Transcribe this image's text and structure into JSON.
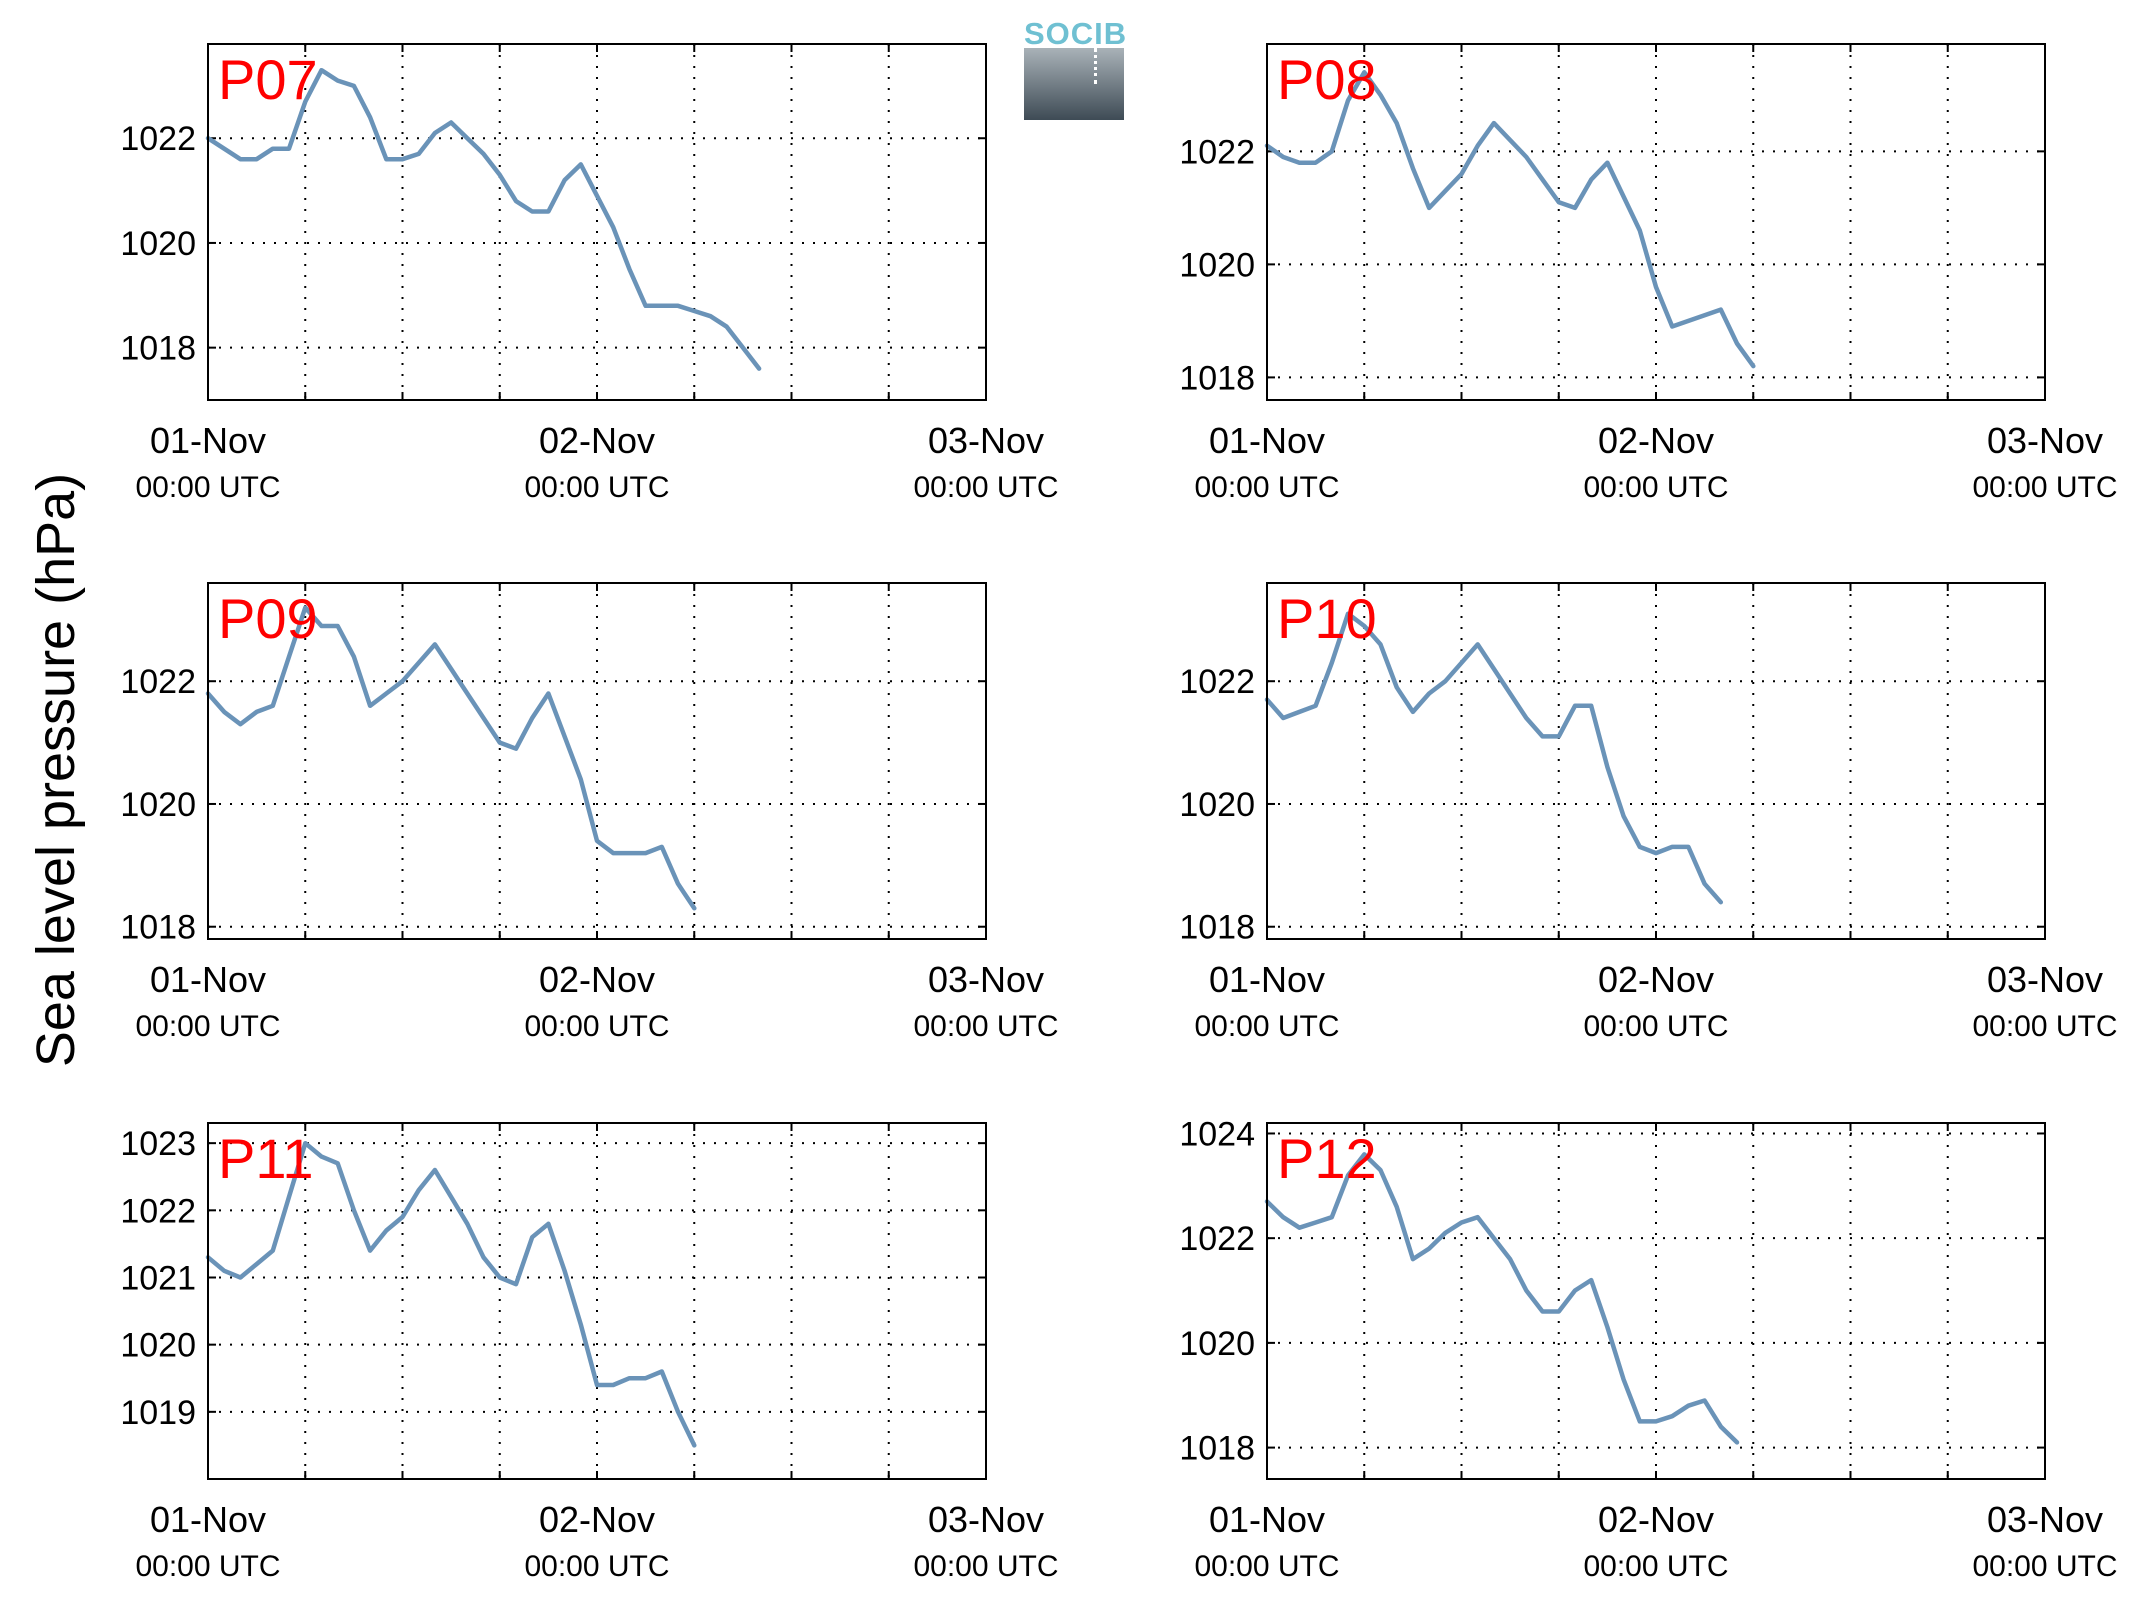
{
  "figure": {
    "ylabel": "Sea level pressure (hPa)",
    "logo_text": "SOCIB",
    "colors": {
      "line": "#6a93b8",
      "panel_label": "#ff0000",
      "axes": "#000000"
    }
  },
  "chart_data": [
    {
      "type": "line",
      "label": "P07",
      "ylim": [
        1017.0,
        1023.8
      ],
      "yticks": [
        1018,
        1020,
        1022
      ],
      "xlim": [
        0,
        48
      ],
      "xticks": [
        0,
        24,
        48
      ],
      "xticklabels": [
        [
          "01-Nov",
          "00:00 UTC"
        ],
        [
          "02-Nov",
          "00:00 UTC"
        ],
        [
          "03-Nov",
          "00:00 UTC"
        ]
      ],
      "x": [
        0,
        1,
        2,
        3,
        4,
        5,
        6,
        7,
        8,
        9,
        10,
        11,
        12,
        13,
        14,
        15,
        16,
        17,
        18,
        19,
        20,
        21,
        22,
        23,
        24,
        25,
        26,
        27,
        28,
        29,
        30,
        31,
        32,
        33,
        34,
        35,
        36,
        37,
        38,
        39,
        40,
        41,
        42,
        43,
        44,
        45,
        46,
        47,
        48
      ],
      "y": [
        1022.0,
        1021.8,
        1021.6,
        1021.6,
        1021.8,
        1021.8,
        1022.7,
        1023.3,
        1023.1,
        1023.0,
        1022.4,
        1021.6,
        1021.6,
        1021.7,
        1022.1,
        1022.3,
        1022.0,
        1021.7,
        1021.3,
        1020.8,
        1020.6,
        1020.6,
        1021.2,
        1021.5,
        1020.9,
        1020.3,
        1019.5,
        1018.8,
        1018.8,
        1018.8,
        1018.7,
        1018.6,
        1018.4,
        1018.0,
        1017.6,
        null,
        null,
        null,
        null,
        null,
        null,
        null,
        null,
        null,
        null,
        null,
        null,
        null,
        null
      ]
    },
    {
      "type": "line",
      "label": "P08",
      "ylim": [
        1017.6,
        1023.9
      ],
      "yticks": [
        1018,
        1020,
        1022
      ],
      "xlim": [
        0,
        48
      ],
      "xticks": [
        0,
        24,
        48
      ],
      "xticklabels": [
        [
          "01-Nov",
          "00:00 UTC"
        ],
        [
          "02-Nov",
          "00:00 UTC"
        ],
        [
          "03-Nov",
          "00:00 UTC"
        ]
      ],
      "x": [
        0,
        1,
        2,
        3,
        4,
        5,
        6,
        7,
        8,
        9,
        10,
        11,
        12,
        13,
        14,
        15,
        16,
        17,
        18,
        19,
        20,
        21,
        22,
        23,
        24,
        25,
        26,
        27,
        28,
        29,
        30,
        31,
        32,
        33,
        34,
        35,
        36,
        37,
        38,
        39,
        40,
        41,
        42,
        43,
        44,
        45,
        46,
        47,
        48
      ],
      "y": [
        1022.1,
        1021.9,
        1021.8,
        1021.8,
        1022.0,
        1022.9,
        1023.4,
        1023.0,
        1022.5,
        1021.7,
        1021.0,
        1021.3,
        1021.6,
        1022.1,
        1022.5,
        1022.2,
        1021.9,
        1021.5,
        1021.1,
        1021.0,
        1021.5,
        1021.8,
        1021.2,
        1020.6,
        1019.6,
        1018.9,
        1019.0,
        1019.1,
        1019.2,
        1018.6,
        1018.2,
        null,
        null,
        null,
        null,
        null,
        null,
        null,
        null,
        null,
        null,
        null,
        null,
        null,
        null,
        null,
        null,
        null,
        null
      ]
    },
    {
      "type": "line",
      "label": "P09",
      "ylim": [
        1017.8,
        1023.6
      ],
      "yticks": [
        1018,
        1020,
        1022
      ],
      "xlim": [
        0,
        48
      ],
      "xticks": [
        0,
        24,
        48
      ],
      "xticklabels": [
        [
          "01-Nov",
          "00:00 UTC"
        ],
        [
          "02-Nov",
          "00:00 UTC"
        ],
        [
          "03-Nov",
          "00:00 UTC"
        ]
      ],
      "x": [
        0,
        1,
        2,
        3,
        4,
        5,
        6,
        7,
        8,
        9,
        10,
        11,
        12,
        13,
        14,
        15,
        16,
        17,
        18,
        19,
        20,
        21,
        22,
        23,
        24,
        25,
        26,
        27,
        28,
        29,
        30,
        31,
        32,
        33,
        34,
        35,
        36,
        37,
        38,
        39,
        40,
        41,
        42,
        43,
        44,
        45,
        46,
        47,
        48
      ],
      "y": [
        1021.8,
        1021.5,
        1021.3,
        1021.5,
        1021.6,
        1022.4,
        1023.2,
        1022.9,
        1022.9,
        1022.4,
        1021.6,
        1021.8,
        1022.0,
        1022.3,
        1022.6,
        1022.2,
        1021.8,
        1021.4,
        1021.0,
        1020.9,
        1021.4,
        1021.8,
        1021.1,
        1020.4,
        1019.4,
        1019.2,
        1019.2,
        1019.2,
        1019.3,
        1018.7,
        1018.3,
        null,
        null,
        null,
        null,
        null,
        null,
        null,
        null,
        null,
        null,
        null,
        null,
        null,
        null,
        null,
        null,
        null,
        null
      ]
    },
    {
      "type": "line",
      "label": "P10",
      "ylim": [
        1017.8,
        1023.6
      ],
      "yticks": [
        1018,
        1020,
        1022
      ],
      "xlim": [
        0,
        48
      ],
      "xticks": [
        0,
        24,
        48
      ],
      "xticklabels": [
        [
          "01-Nov",
          "00:00 UTC"
        ],
        [
          "02-Nov",
          "00:00 UTC"
        ],
        [
          "03-Nov",
          "00:00 UTC"
        ]
      ],
      "x": [
        0,
        1,
        2,
        3,
        4,
        5,
        6,
        7,
        8,
        9,
        10,
        11,
        12,
        13,
        14,
        15,
        16,
        17,
        18,
        19,
        20,
        21,
        22,
        23,
        24,
        25,
        26,
        27,
        28,
        29,
        30,
        31,
        32,
        33,
        34,
        35,
        36,
        37,
        38,
        39,
        40,
        41,
        42,
        43,
        44,
        45,
        46,
        47,
        48
      ],
      "y": [
        1021.7,
        1021.4,
        1021.5,
        1021.6,
        1022.3,
        1023.1,
        1022.9,
        1022.6,
        1021.9,
        1021.5,
        1021.8,
        1022.0,
        1022.3,
        1022.6,
        1022.2,
        1021.8,
        1021.4,
        1021.1,
        1021.1,
        1021.6,
        1021.6,
        1020.6,
        1019.8,
        1019.3,
        1019.2,
        1019.3,
        1019.3,
        1018.7,
        1018.4,
        null,
        null,
        null,
        null,
        null,
        null,
        null,
        null,
        null,
        null,
        null,
        null,
        null,
        null,
        null,
        null,
        null,
        null,
        null,
        null
      ]
    },
    {
      "type": "line",
      "label": "P11",
      "ylim": [
        1018.0,
        1023.3
      ],
      "yticks": [
        1019,
        1020,
        1021,
        1022,
        1023
      ],
      "xlim": [
        0,
        48
      ],
      "xticks": [
        0,
        24,
        48
      ],
      "xticklabels": [
        [
          "01-Nov",
          "00:00 UTC"
        ],
        [
          "02-Nov",
          "00:00 UTC"
        ],
        [
          "03-Nov",
          "00:00 UTC"
        ]
      ],
      "x": [
        0,
        1,
        2,
        3,
        4,
        5,
        6,
        7,
        8,
        9,
        10,
        11,
        12,
        13,
        14,
        15,
        16,
        17,
        18,
        19,
        20,
        21,
        22,
        23,
        24,
        25,
        26,
        27,
        28,
        29,
        30,
        31,
        32,
        33,
        34,
        35,
        36,
        37,
        38,
        39,
        40,
        41,
        42,
        43,
        44,
        45,
        46,
        47,
        48
      ],
      "y": [
        1021.3,
        1021.1,
        1021.0,
        1021.2,
        1021.4,
        1022.2,
        1023.0,
        1022.8,
        1022.7,
        1022.0,
        1021.4,
        1021.7,
        1021.9,
        1022.3,
        1022.6,
        1022.2,
        1021.8,
        1021.3,
        1021.0,
        1020.9,
        1021.6,
        1021.8,
        1021.1,
        1020.3,
        1019.4,
        1019.4,
        1019.5,
        1019.5,
        1019.6,
        1019.0,
        1018.5,
        null,
        null,
        null,
        null,
        null,
        null,
        null,
        null,
        null,
        null,
        null,
        null,
        null,
        null,
        null,
        null,
        null,
        null
      ]
    },
    {
      "type": "line",
      "label": "P12",
      "ylim": [
        1017.4,
        1024.2
      ],
      "yticks": [
        1018,
        1020,
        1022,
        1024
      ],
      "xlim": [
        0,
        48
      ],
      "xticks": [
        0,
        24,
        48
      ],
      "xticklabels": [
        [
          "01-Nov",
          "00:00 UTC"
        ],
        [
          "02-Nov",
          "00:00 UTC"
        ],
        [
          "03-Nov",
          "00:00 UTC"
        ]
      ],
      "x": [
        0,
        1,
        2,
        3,
        4,
        5,
        6,
        7,
        8,
        9,
        10,
        11,
        12,
        13,
        14,
        15,
        16,
        17,
        18,
        19,
        20,
        21,
        22,
        23,
        24,
        25,
        26,
        27,
        28,
        29,
        30,
        31,
        32,
        33,
        34,
        35,
        36,
        37,
        38,
        39,
        40,
        41,
        42,
        43,
        44,
        45,
        46,
        47,
        48
      ],
      "y": [
        1022.7,
        1022.4,
        1022.2,
        1022.3,
        1022.4,
        1023.2,
        1023.6,
        1023.3,
        1022.6,
        1021.6,
        1021.8,
        1022.1,
        1022.3,
        1022.4,
        1022.0,
        1021.6,
        1021.0,
        1020.6,
        1020.6,
        1021.0,
        1021.2,
        1020.3,
        1019.3,
        1018.5,
        1018.5,
        1018.6,
        1018.8,
        1018.9,
        1018.4,
        1018.1,
        null,
        null,
        null,
        null,
        null,
        null,
        null,
        null,
        null,
        null,
        null,
        null,
        null,
        null,
        null,
        null,
        null,
        null,
        null
      ]
    }
  ]
}
